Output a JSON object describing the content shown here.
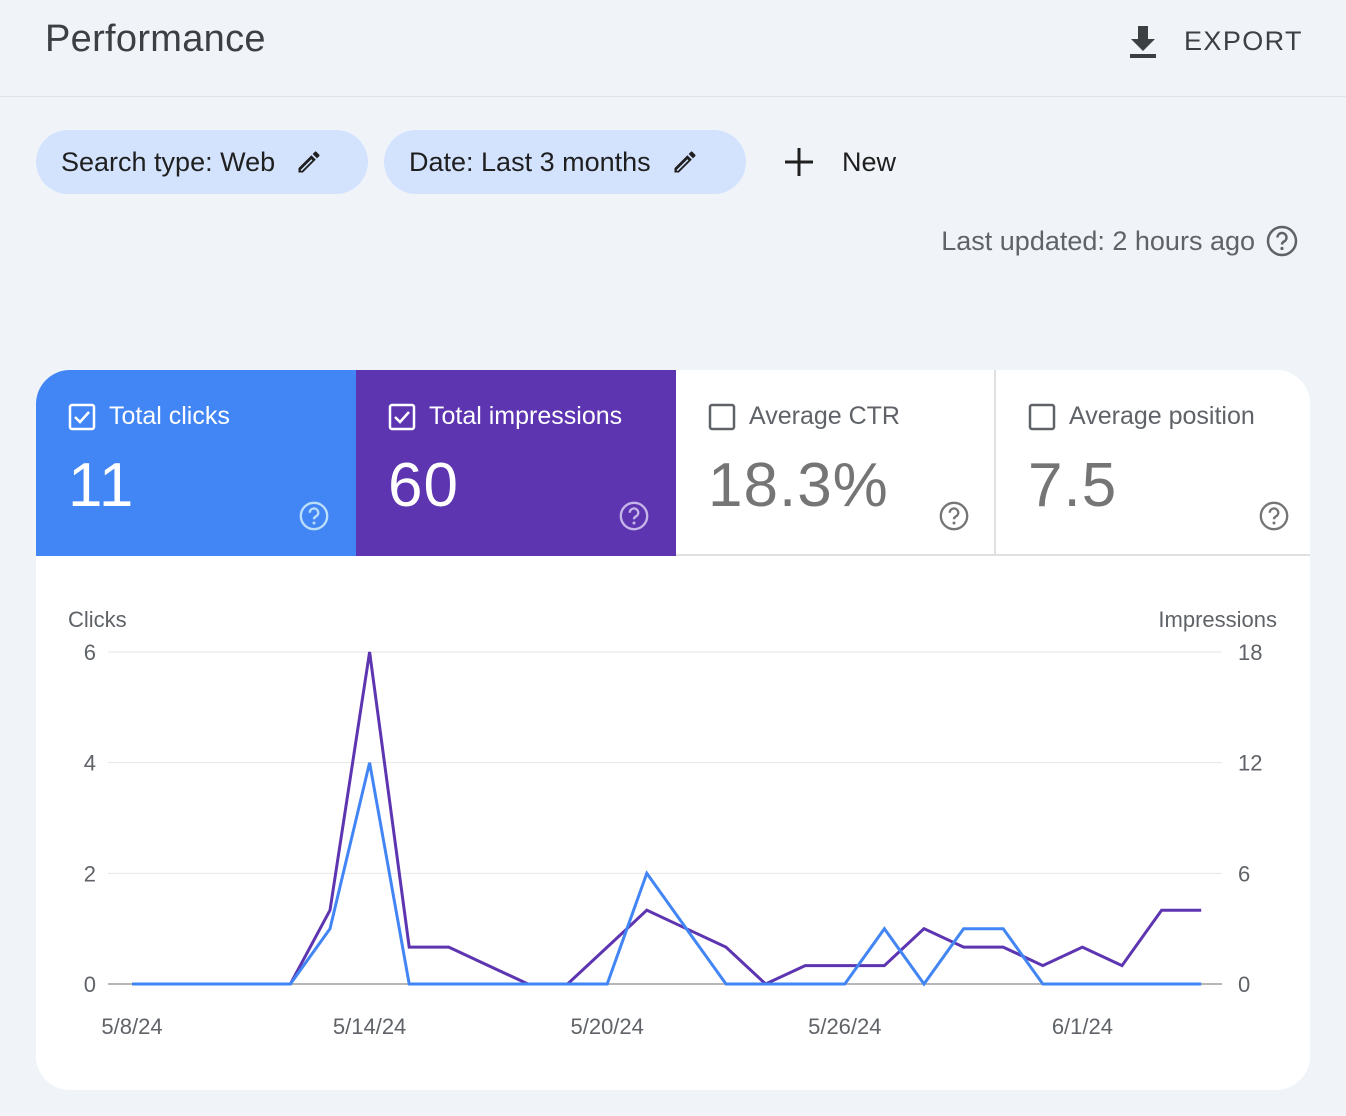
{
  "header": {
    "title": "Performance",
    "export_label": "EXPORT"
  },
  "filters": {
    "search_type": "Search type: Web",
    "date": "Date: Last 3 months",
    "new_label": "New"
  },
  "last_updated": "Last updated: 2 hours ago",
  "metrics": {
    "total_clicks": {
      "label": "Total clicks",
      "value": "11",
      "checked": true,
      "color": "#4285f4"
    },
    "total_impressions": {
      "label": "Total impressions",
      "value": "60",
      "checked": true,
      "color": "#5e35b1"
    },
    "average_ctr": {
      "label": "Average CTR",
      "value": "18.3%",
      "checked": false
    },
    "average_position": {
      "label": "Average position",
      "value": "7.5",
      "checked": false
    }
  },
  "chart_data": {
    "type": "line",
    "ylabel_left": "Clicks",
    "ylabel_right": "Impressions",
    "yticks_left": [
      "0",
      "2",
      "4",
      "6"
    ],
    "yticks_right": [
      "0",
      "6",
      "12",
      "18"
    ],
    "ylim_left": [
      0,
      6
    ],
    "ylim_right": [
      0,
      18
    ],
    "x_tick_labels": [
      "5/8/24",
      "5/14/24",
      "5/20/24",
      "5/26/24",
      "6/1/24"
    ],
    "x_tick_indices": [
      0,
      6,
      12,
      18,
      24
    ],
    "dates": [
      "5/8/24",
      "5/9/24",
      "5/10/24",
      "5/11/24",
      "5/12/24",
      "5/13/24",
      "5/14/24",
      "5/15/24",
      "5/16/24",
      "5/17/24",
      "5/18/24",
      "5/19/24",
      "5/20/24",
      "5/21/24",
      "5/22/24",
      "5/23/24",
      "5/24/24",
      "5/25/24",
      "5/26/24",
      "5/27/24",
      "5/28/24",
      "5/29/24",
      "5/30/24",
      "5/31/24",
      "6/1/24",
      "6/2/24",
      "6/3/24",
      "6/4/24"
    ],
    "grid": true,
    "series": [
      {
        "name": "Clicks",
        "axis": "left",
        "color": "#4285f4",
        "values": [
          0,
          0,
          0,
          0,
          0,
          1,
          4,
          0,
          0,
          0,
          0,
          0,
          0,
          2,
          1,
          0,
          0,
          0,
          0,
          1,
          0,
          1,
          1,
          0,
          0,
          0,
          0,
          0
        ]
      },
      {
        "name": "Impressions",
        "axis": "right",
        "color": "#5e35b1",
        "values": [
          0,
          0,
          0,
          0,
          0,
          4,
          18,
          2,
          2,
          1,
          0,
          0,
          2,
          4,
          3,
          2,
          0,
          1,
          1,
          1,
          3,
          2,
          2,
          1,
          2,
          1,
          4,
          4
        ]
      }
    ]
  }
}
